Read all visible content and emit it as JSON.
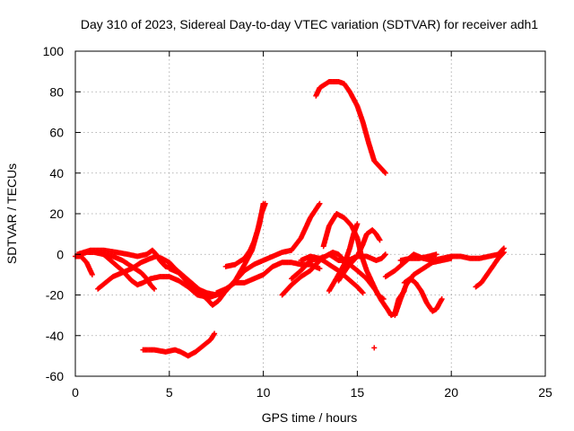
{
  "chart_data": {
    "type": "scatter",
    "title": "Day 310 of 2023, Sidereal Day-to-day VTEC variation (SDTVAR) for receiver adh1",
    "xlabel": "GPS time / hours",
    "ylabel": "SDTVAR / TECUs",
    "xlim": [
      0,
      25
    ],
    "ylim": [
      -60,
      100
    ],
    "xticks": [
      0,
      5,
      10,
      15,
      20,
      25
    ],
    "yticks": [
      -60,
      -40,
      -20,
      0,
      20,
      40,
      60,
      80,
      100
    ],
    "grid": true,
    "marker": "+",
    "color": "#ff0000",
    "series": [
      {
        "name": "s1",
        "points": [
          [
            0.0,
            -1
          ],
          [
            0.3,
            -1
          ],
          [
            0.6,
            -4
          ],
          [
            0.9,
            -10
          ]
        ]
      },
      {
        "name": "s2",
        "points": [
          [
            0.1,
            0
          ],
          [
            0.8,
            2
          ],
          [
            1.5,
            2
          ],
          [
            2.2,
            1
          ],
          [
            2.8,
            0
          ],
          [
            3.3,
            -1
          ],
          [
            3.8,
            0
          ],
          [
            4.1,
            2
          ],
          [
            4.3,
            0
          ],
          [
            4.5,
            -3
          ],
          [
            4.8,
            -6
          ],
          [
            5.2,
            -7
          ],
          [
            5.5,
            -9
          ],
          [
            6.0,
            -14
          ],
          [
            6.5,
            -18
          ],
          [
            7.0,
            -22
          ],
          [
            7.3,
            -25
          ],
          [
            7.6,
            -23
          ],
          [
            8.0,
            -18
          ],
          [
            8.5,
            -13
          ],
          [
            9.0,
            -5
          ],
          [
            9.4,
            2
          ],
          [
            9.8,
            15
          ],
          [
            10.0,
            25
          ]
        ]
      },
      {
        "name": "s3",
        "points": [
          [
            0.3,
            0
          ],
          [
            0.6,
            1
          ],
          [
            1.0,
            1
          ],
          [
            1.5,
            0
          ],
          [
            2.0,
            -4
          ],
          [
            2.5,
            -8
          ],
          [
            3.0,
            -13
          ],
          [
            3.3,
            -15
          ],
          [
            3.6,
            -14
          ],
          [
            4.0,
            -12
          ],
          [
            4.5,
            -11
          ],
          [
            5.0,
            -11
          ],
          [
            5.5,
            -13
          ],
          [
            6.0,
            -16
          ],
          [
            6.5,
            -20
          ],
          [
            7.0,
            -21
          ]
        ]
      },
      {
        "name": "s4",
        "points": [
          [
            1.2,
            -17
          ],
          [
            1.6,
            -14
          ],
          [
            2.0,
            -11
          ],
          [
            2.5,
            -9
          ],
          [
            3.0,
            -7
          ],
          [
            3.5,
            -4
          ],
          [
            4.0,
            -2
          ],
          [
            4.3,
            -1
          ],
          [
            4.6,
            -2
          ],
          [
            5.0,
            -4
          ],
          [
            5.3,
            -7
          ],
          [
            5.8,
            -11
          ],
          [
            6.3,
            -15
          ],
          [
            6.8,
            -19
          ],
          [
            7.2,
            -21
          ],
          [
            7.5,
            -20
          ],
          [
            8.0,
            -18
          ]
        ]
      },
      {
        "name": "s5",
        "points": [
          [
            1.5,
            0
          ],
          [
            2.0,
            -1
          ],
          [
            2.5,
            -3
          ],
          [
            3.0,
            -6
          ],
          [
            3.5,
            -9
          ],
          [
            3.8,
            -12
          ],
          [
            4.0,
            -15
          ],
          [
            4.2,
            -17
          ]
        ]
      },
      {
        "name": "s6",
        "points": [
          [
            3.6,
            -47
          ],
          [
            4.2,
            -47
          ],
          [
            4.8,
            -48
          ],
          [
            5.3,
            -47
          ],
          [
            5.6,
            -48
          ],
          [
            6.0,
            -50
          ],
          [
            6.4,
            -48
          ],
          [
            6.8,
            -45
          ],
          [
            7.2,
            -42
          ],
          [
            7.4,
            -39
          ]
        ]
      },
      {
        "name": "s7",
        "points": [
          [
            5.0,
            -7
          ],
          [
            5.5,
            -9
          ],
          [
            6.0,
            -13
          ],
          [
            6.5,
            -17
          ],
          [
            7.0,
            -19
          ],
          [
            7.5,
            -20
          ],
          [
            8.0,
            -18
          ],
          [
            8.5,
            -13
          ],
          [
            9.0,
            -8
          ],
          [
            9.5,
            -5
          ],
          [
            10.0,
            -3
          ],
          [
            10.5,
            -1
          ],
          [
            11.0,
            1
          ],
          [
            11.5,
            2
          ],
          [
            12.0,
            8
          ],
          [
            12.5,
            18
          ],
          [
            13.0,
            25
          ]
        ]
      },
      {
        "name": "s8",
        "points": [
          [
            7.5,
            -19
          ],
          [
            8.0,
            -17
          ],
          [
            8.5,
            -14
          ],
          [
            9.0,
            -14
          ],
          [
            9.5,
            -12
          ],
          [
            10.0,
            -10
          ],
          [
            10.5,
            -6
          ],
          [
            11.0,
            -4
          ],
          [
            11.5,
            -4
          ],
          [
            12.0,
            -5
          ],
          [
            12.5,
            -5
          ],
          [
            13.0,
            -7
          ]
        ]
      },
      {
        "name": "s9",
        "points": [
          [
            8.0,
            -6
          ],
          [
            8.5,
            -5
          ],
          [
            9.0,
            -2
          ],
          [
            9.3,
            2
          ],
          [
            9.5,
            6
          ],
          [
            9.7,
            12
          ],
          [
            9.9,
            20
          ],
          [
            10.1,
            25
          ]
        ]
      },
      {
        "name": "s10",
        "points": [
          [
            11.0,
            -20
          ],
          [
            11.5,
            -15
          ],
          [
            12.0,
            -11
          ],
          [
            12.5,
            -8
          ],
          [
            13.0,
            -3
          ],
          [
            13.5,
            0
          ],
          [
            14.0,
            -3
          ],
          [
            14.5,
            -3
          ],
          [
            15.0,
            -1
          ],
          [
            15.5,
            -1
          ],
          [
            16.0,
            -3
          ],
          [
            16.3,
            -2
          ],
          [
            16.5,
            0
          ]
        ]
      },
      {
        "name": "s11",
        "points": [
          [
            11.5,
            -12
          ],
          [
            12.0,
            -8
          ],
          [
            12.5,
            -3
          ],
          [
            13.0,
            -2
          ],
          [
            13.3,
            -1
          ],
          [
            13.7,
            1
          ],
          [
            14.0,
            0
          ],
          [
            14.3,
            -3
          ],
          [
            14.6,
            -5
          ],
          [
            15.0,
            -8
          ]
        ]
      },
      {
        "name": "s12",
        "points": [
          [
            12.0,
            -3
          ],
          [
            12.5,
            -1
          ],
          [
            13.0,
            -2
          ],
          [
            13.5,
            -5
          ],
          [
            14.0,
            -8
          ],
          [
            14.5,
            -12
          ],
          [
            15.0,
            -16
          ],
          [
            15.3,
            -19
          ]
        ]
      },
      {
        "name": "s13",
        "points": [
          [
            12.8,
            78
          ],
          [
            13.0,
            82
          ],
          [
            13.5,
            85
          ],
          [
            14.0,
            85
          ],
          [
            14.3,
            84
          ],
          [
            14.6,
            80
          ],
          [
            15.0,
            73
          ],
          [
            15.3,
            65
          ],
          [
            15.6,
            55
          ],
          [
            15.9,
            46
          ],
          [
            16.2,
            43
          ],
          [
            16.5,
            40
          ]
        ]
      },
      {
        "name": "s14",
        "points": [
          [
            13.5,
            -18
          ],
          [
            14.0,
            -10
          ],
          [
            14.3,
            -5
          ],
          [
            14.6,
            3
          ],
          [
            14.8,
            10
          ],
          [
            15.0,
            15
          ]
        ]
      },
      {
        "name": "s15",
        "points": [
          [
            14.0,
            -13
          ],
          [
            14.5,
            -6
          ],
          [
            15.0,
            -1
          ],
          [
            15.3,
            5
          ],
          [
            15.5,
            10
          ],
          [
            15.8,
            12
          ],
          [
            16.0,
            10
          ],
          [
            16.2,
            7
          ]
        ]
      },
      {
        "name": "s16",
        "points": [
          [
            13.2,
            4
          ],
          [
            13.5,
            14
          ],
          [
            13.9,
            20
          ],
          [
            14.3,
            18
          ],
          [
            14.7,
            14
          ],
          [
            15.0,
            8
          ],
          [
            15.2,
            0
          ],
          [
            15.5,
            -8
          ],
          [
            15.8,
            -14
          ],
          [
            16.1,
            -20
          ],
          [
            16.4,
            -22
          ]
        ]
      },
      {
        "name": "s17",
        "points": [
          [
            15.0,
            -8
          ],
          [
            15.5,
            -12
          ],
          [
            16.0,
            -18
          ],
          [
            16.3,
            -23
          ],
          [
            16.6,
            -27
          ],
          [
            16.8,
            -30
          ],
          [
            17.0,
            -29
          ],
          [
            17.2,
            -22
          ],
          [
            17.5,
            -18
          ]
        ]
      },
      {
        "name": "s18",
        "points": [
          [
            16.5,
            -11
          ],
          [
            17.0,
            -8
          ],
          [
            17.5,
            -4
          ],
          [
            18.0,
            0
          ],
          [
            18.5,
            -2
          ],
          [
            19.0,
            -3
          ],
          [
            19.5,
            -2
          ],
          [
            20.0,
            -1
          ],
          [
            20.5,
            -1
          ],
          [
            21.0,
            -2
          ],
          [
            21.5,
            -2
          ],
          [
            22.0,
            -1
          ],
          [
            22.5,
            0
          ],
          [
            22.8,
            3
          ]
        ]
      },
      {
        "name": "s19",
        "points": [
          [
            17.0,
            -30
          ],
          [
            17.3,
            -22
          ],
          [
            17.6,
            -15
          ],
          [
            18.0,
            -10
          ],
          [
            18.5,
            -7
          ],
          [
            19.0,
            -4
          ],
          [
            19.5,
            -3
          ],
          [
            20.0,
            -2
          ]
        ]
      },
      {
        "name": "s20",
        "points": [
          [
            17.5,
            -14
          ],
          [
            17.8,
            -12
          ],
          [
            18.1,
            -14
          ],
          [
            18.4,
            -18
          ],
          [
            18.7,
            -24
          ],
          [
            19.0,
            -28
          ],
          [
            19.2,
            -27
          ],
          [
            19.5,
            -22
          ]
        ]
      },
      {
        "name": "s21",
        "points": [
          [
            17.3,
            -3
          ],
          [
            17.8,
            -2
          ],
          [
            18.3,
            -2
          ],
          [
            18.8,
            -1
          ],
          [
            19.2,
            0
          ]
        ]
      },
      {
        "name": "s22",
        "points": [
          [
            21.3,
            -16
          ],
          [
            21.6,
            -14
          ],
          [
            21.9,
            -10
          ],
          [
            22.2,
            -6
          ],
          [
            22.5,
            -2
          ],
          [
            22.8,
            1
          ]
        ]
      },
      {
        "name": "s23",
        "points": [
          [
            15.9,
            -46
          ]
        ]
      }
    ]
  }
}
